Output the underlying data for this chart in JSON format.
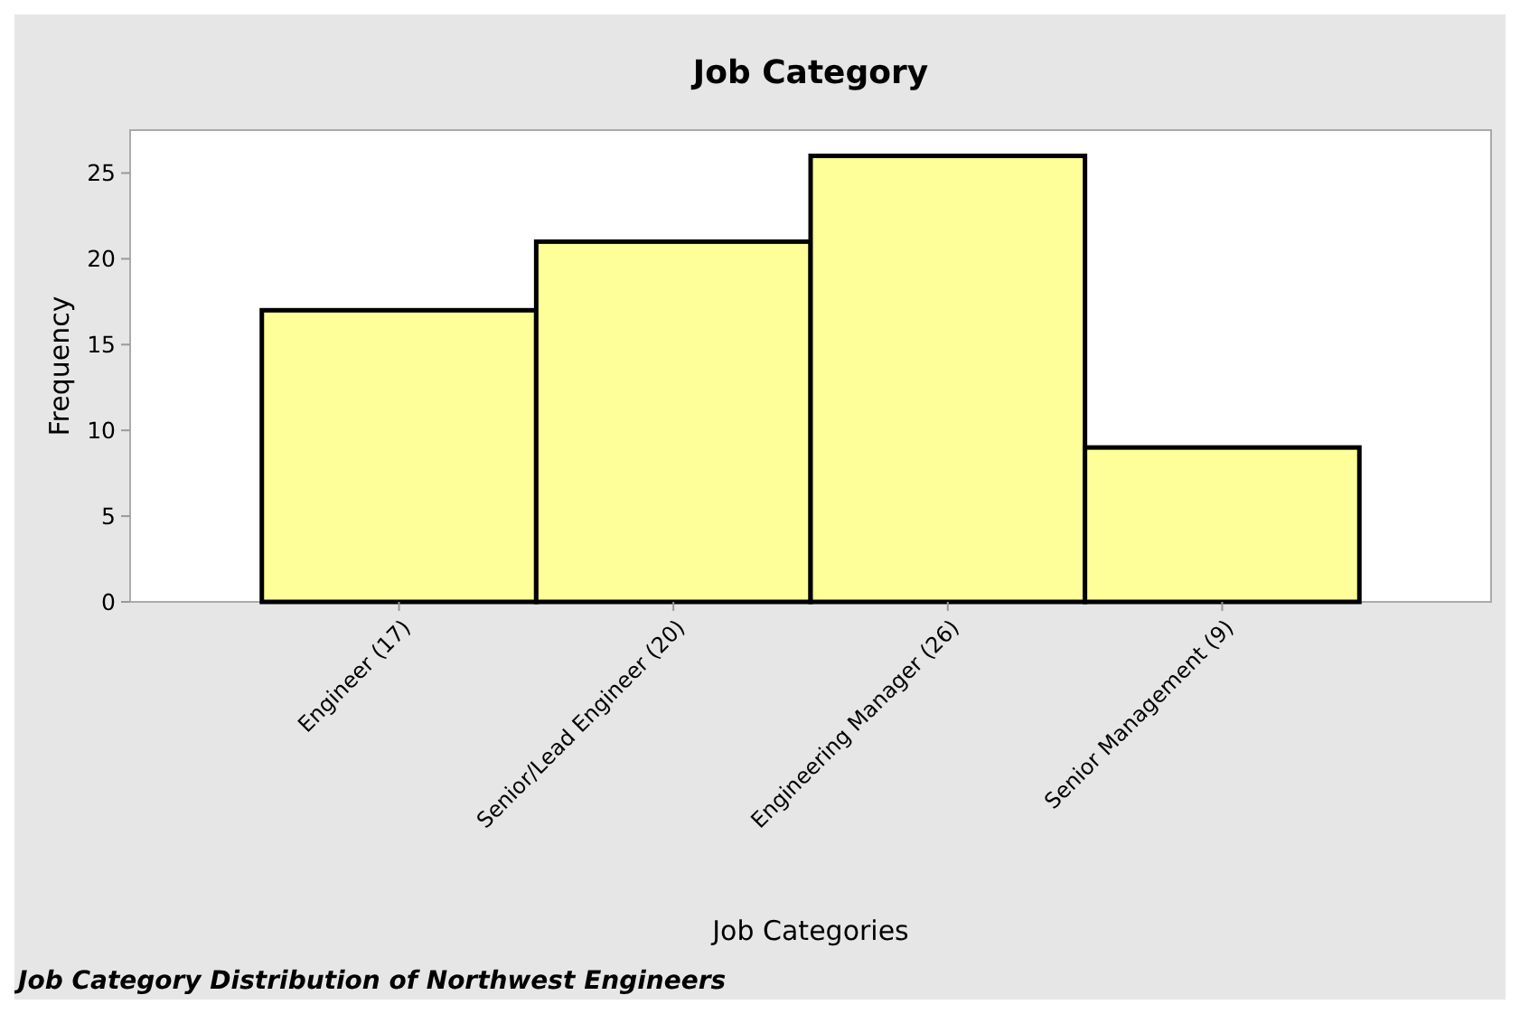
{
  "chart_data": {
    "type": "bar",
    "title": "Job Category",
    "xlabel": "Job Categories",
    "ylabel": "Frequency",
    "categories": [
      "Engineer (17)",
      "Senior/Lead Engineer (20)",
      "Engineering Manager (26)",
      "Senior Management (9)"
    ],
    "values": [
      17,
      21,
      26,
      9
    ],
    "color": "#ffff99",
    "ylim": [
      0,
      27.5
    ],
    "yticks": [
      0,
      5,
      10,
      15,
      20,
      25
    ],
    "grid": false,
    "annotations": [
      "Job Category Distribution of Northwest Engineers"
    ]
  }
}
